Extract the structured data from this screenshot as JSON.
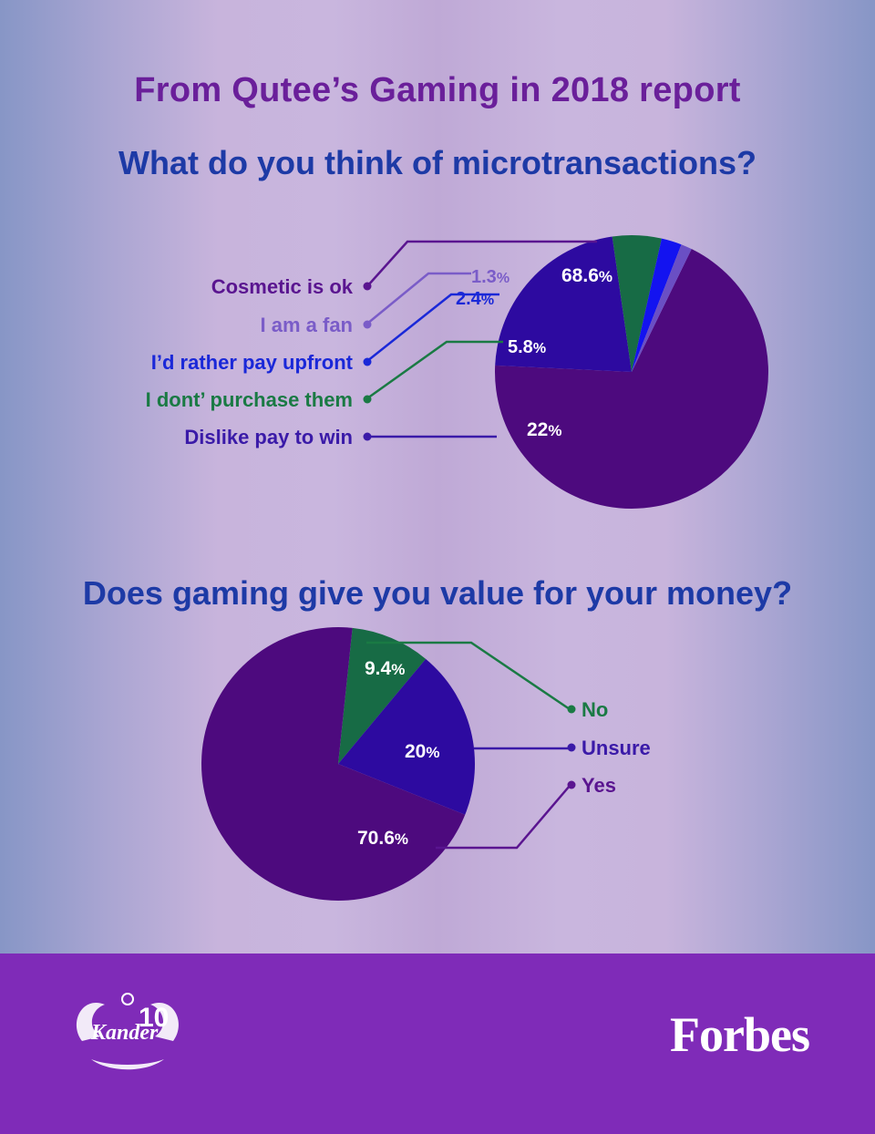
{
  "header": {
    "report_title": "From Qutee’s Gaming in 2018 report"
  },
  "colors": {
    "purple_dark": "#4d0a7e",
    "indigo": "#2d0aa0",
    "green": "#176b45",
    "blue": "#1313f0",
    "lavender": "#6a4fc4",
    "footer": "#7f2bb8"
  },
  "chart_data": [
    {
      "type": "pie",
      "title": "What do you think of microtransactions?",
      "slices": [
        {
          "label": "Cosmetic is ok",
          "value": 68.6,
          "value_label": "68.6%",
          "color": "#4d0a7e",
          "label_color": "#5a1590"
        },
        {
          "label": "I am a fan",
          "value": 1.3,
          "value_label": "1.3%",
          "color": "#6a4fc4",
          "label_color": "#7a5cc8"
        },
        {
          "label": "I’d rather pay upfront",
          "value": 2.4,
          "value_label": "2.4%",
          "color": "#1313f0",
          "label_color": "#1a28d8"
        },
        {
          "label": "I dont’ purchase them",
          "value": 5.8,
          "value_label": "5.8%",
          "color": "#176b45",
          "label_color": "#1a7a44"
        },
        {
          "label": "Dislike pay to win",
          "value": 22,
          "value_label": "22%",
          "color": "#2d0aa0",
          "label_color": "#3a1aa8"
        }
      ],
      "legend_position": "left"
    },
    {
      "type": "pie",
      "title": "Does gaming give you value for your money?",
      "slices": [
        {
          "label": "No",
          "value": 9.4,
          "value_label": "9.4%",
          "color": "#176b45",
          "label_color": "#1a7a44"
        },
        {
          "label": "Unsure",
          "value": 20,
          "value_label": "20%",
          "color": "#2d0aa0",
          "label_color": "#3a1aa8"
        },
        {
          "label": "Yes",
          "value": 70.6,
          "value_label": "70.6%",
          "color": "#4d0a7e",
          "label_color": "#5a1590"
        }
      ],
      "legend_position": "right"
    }
  ],
  "footer": {
    "brand": "Forbes",
    "logo_text": "Kander",
    "logo_number": "10"
  }
}
